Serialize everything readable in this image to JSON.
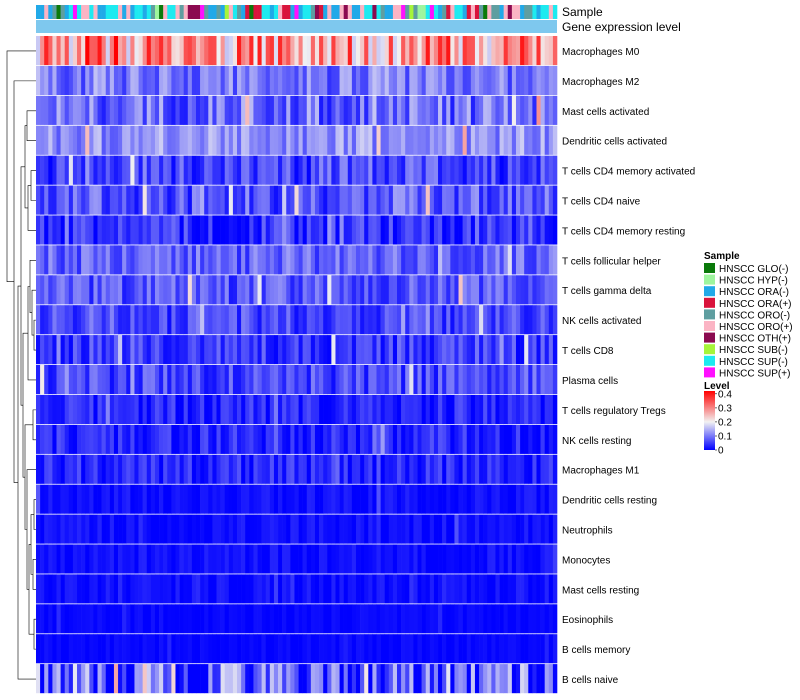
{
  "chart_data": {
    "type": "heatmap",
    "title": "",
    "xlabel": "",
    "ylabel": "",
    "n_samples": 127,
    "top_annotations": [
      "Sample",
      "Gene expression level"
    ],
    "expression_level_color": "#7ec8ee",
    "rows": [
      {
        "label": "Macrophages M0",
        "mean": 0.28,
        "spread": 0.12
      },
      {
        "label": "Macrophages M2",
        "mean": 0.1,
        "spread": 0.06
      },
      {
        "label": "Mast cells activated",
        "mean": 0.09,
        "spread": 0.07
      },
      {
        "label": "Dendritic cells activated",
        "mean": 0.12,
        "spread": 0.05
      },
      {
        "label": "T cells CD4 memory activated",
        "mean": 0.06,
        "spread": 0.06
      },
      {
        "label": "T cells CD4 naive",
        "mean": 0.07,
        "spread": 0.06
      },
      {
        "label": "T cells CD4 memory resting",
        "mean": 0.04,
        "spread": 0.05
      },
      {
        "label": "T cells follicular helper",
        "mean": 0.08,
        "spread": 0.05
      },
      {
        "label": "T cells gamma delta",
        "mean": 0.07,
        "spread": 0.05
      },
      {
        "label": "NK cells activated",
        "mean": 0.06,
        "spread": 0.05
      },
      {
        "label": "T cells CD8",
        "mean": 0.05,
        "spread": 0.05
      },
      {
        "label": "Plasma cells",
        "mean": 0.06,
        "spread": 0.05
      },
      {
        "label": "T cells regulatory  Tregs",
        "mean": 0.03,
        "spread": 0.04
      },
      {
        "label": "NK cells resting",
        "mean": 0.03,
        "spread": 0.04
      },
      {
        "label": "Macrophages M1",
        "mean": 0.03,
        "spread": 0.04
      },
      {
        "label": "Dendritic cells resting",
        "mean": 0.01,
        "spread": 0.02
      },
      {
        "label": "Neutrophils",
        "mean": 0.01,
        "spread": 0.02
      },
      {
        "label": "Monocytes",
        "mean": 0.01,
        "spread": 0.02
      },
      {
        "label": "Mast cells resting",
        "mean": 0.01,
        "spread": 0.02
      },
      {
        "label": "Eosinophils",
        "mean": 0.005,
        "spread": 0.01
      },
      {
        "label": "B cells memory",
        "mean": 0.005,
        "spread": 0.01
      },
      {
        "label": "B cells naive",
        "mean": 0.07,
        "spread": 0.12
      }
    ],
    "legend": {
      "sample_title": "Sample",
      "samples": [
        {
          "label": "HNSCC GLO(-)",
          "color": "#0a7a0a"
        },
        {
          "label": "HNSCC HYP(-)",
          "color": "#9ef59e"
        },
        {
          "label": "HNSCC ORA(-)",
          "color": "#21a9e8"
        },
        {
          "label": "HNSCC ORA(+)",
          "color": "#d9143c"
        },
        {
          "label": "HNSCC ORO(-)",
          "color": "#5f9ea0"
        },
        {
          "label": "HNSCC ORO(+)",
          "color": "#fbb4c4"
        },
        {
          "label": "HNSCC OTH(+)",
          "color": "#8b0a50"
        },
        {
          "label": "HNSCC SUB(-)",
          "color": "#a6f53a"
        },
        {
          "label": "HNSCC SUP(-)",
          "color": "#1eeaf0"
        },
        {
          "label": "HNSCC SUP(+)",
          "color": "#ff10ff"
        }
      ],
      "level_title": "Level",
      "level_ticks": [
        "0.4",
        "0.3",
        "0.2",
        "0.1",
        "0"
      ],
      "level_min": 0,
      "level_max": 0.42,
      "color_stops": [
        {
          "value": 0.0,
          "color": "#0000ff"
        },
        {
          "value": 0.2,
          "color": "#f2f2f2"
        },
        {
          "value": 0.42,
          "color": "#ff0000"
        }
      ]
    }
  }
}
